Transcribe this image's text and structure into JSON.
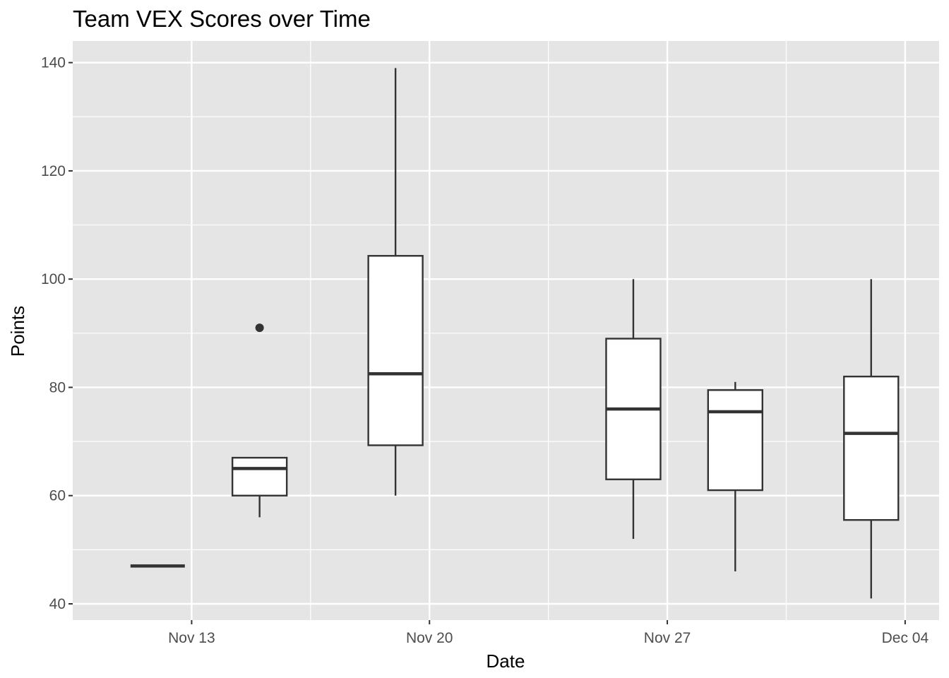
{
  "chart_data": {
    "type": "boxplot",
    "title": "Team VEX Scores over Time",
    "xlabel": "Date",
    "ylabel": "Points",
    "ylim": [
      37,
      144
    ],
    "y_ticks": [
      40,
      60,
      80,
      100,
      120,
      140
    ],
    "xlim": [
      "2023-11-09 12:00",
      "2023-12-05 00:00"
    ],
    "x_ticks": [
      {
        "date": "2023-11-13",
        "label": "Nov 13"
      },
      {
        "date": "2023-11-20",
        "label": "Nov 20"
      },
      {
        "date": "2023-11-27",
        "label": "Nov 27"
      },
      {
        "date": "2023-12-04",
        "label": "Dec 04"
      }
    ],
    "grid": true,
    "legend": "none",
    "colors": {
      "panel": "#e5e5e5",
      "grid": "#ffffff",
      "box_fill": "#ffffff",
      "box_line": "#333333",
      "tick_text": "#4d4d4d"
    },
    "boxes": [
      {
        "date": "2023-11-12",
        "min": 47,
        "q1": 47,
        "median": 47,
        "q3": 47,
        "max": 47,
        "outliers": []
      },
      {
        "date": "2023-11-15",
        "min": 56,
        "q1": 60,
        "median": 65,
        "q3": 67,
        "max": 67,
        "outliers": [
          91
        ]
      },
      {
        "date": "2023-11-19",
        "min": 60,
        "q1": 69.3,
        "median": 82.5,
        "q3": 104.3,
        "max": 139,
        "outliers": []
      },
      {
        "date": "2023-11-26",
        "min": 52,
        "q1": 63,
        "median": 76,
        "q3": 89,
        "max": 100,
        "outliers": []
      },
      {
        "date": "2023-11-29",
        "min": 46,
        "q1": 61,
        "median": 75.5,
        "q3": 79.5,
        "max": 81,
        "outliers": []
      },
      {
        "date": "2023-12-03",
        "min": 41,
        "q1": 55.5,
        "median": 71.5,
        "q3": 82,
        "max": 100,
        "outliers": []
      }
    ]
  }
}
